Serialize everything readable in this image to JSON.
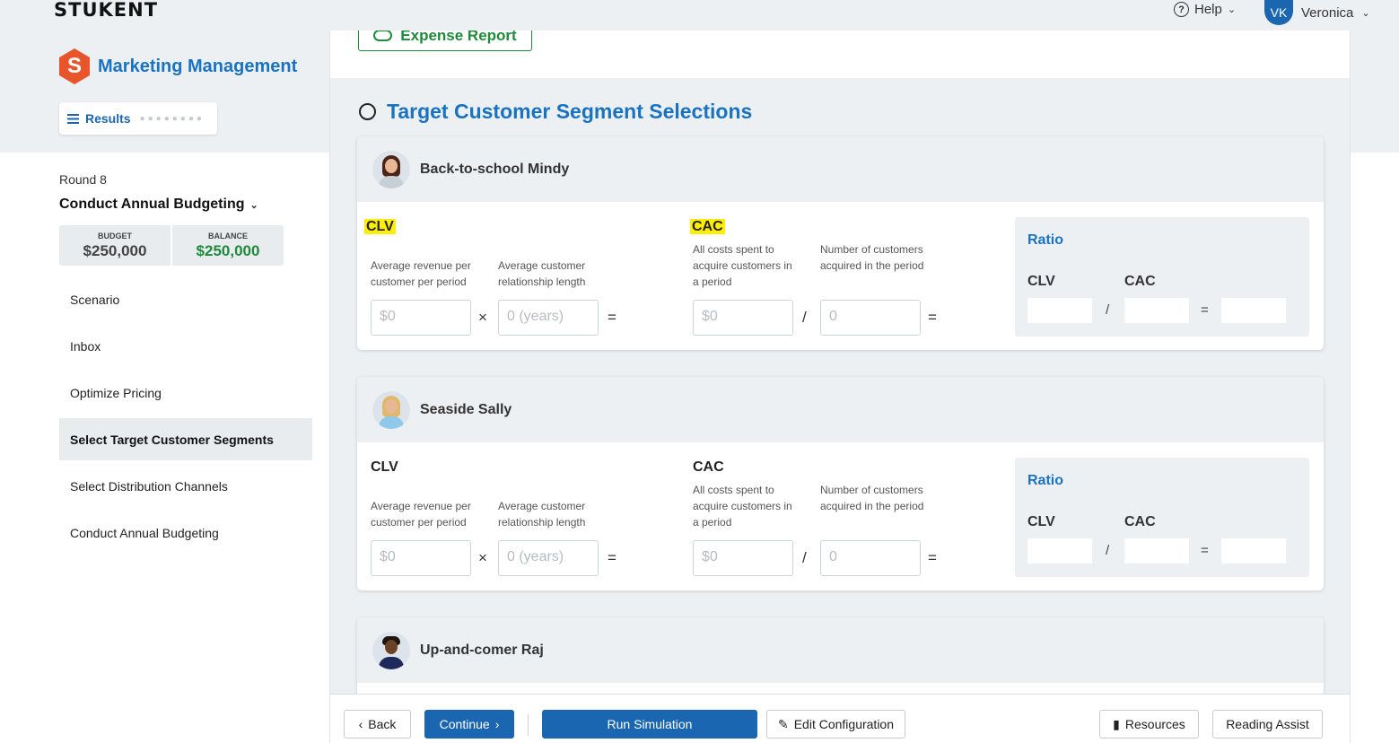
{
  "app": {
    "logo": "STUKENT",
    "product_name": "Marketing Management",
    "product_icon_letter": "S"
  },
  "header": {
    "help_label": "Help",
    "user_initials": "VK",
    "user_name": "Veronica"
  },
  "sidebar": {
    "results_label": "Results",
    "round_label": "Round 8",
    "phase_label": "Conduct Annual Budgeting",
    "budget": {
      "budget_header": "BUDGET",
      "budget_value": "$250,000",
      "balance_header": "BALANCE",
      "balance_value": "$250,000"
    },
    "nav": [
      {
        "label": "Scenario",
        "active": false
      },
      {
        "label": "Inbox",
        "active": false
      },
      {
        "label": "Optimize Pricing",
        "active": false
      },
      {
        "label": "Select Target Customer Segments",
        "active": true
      },
      {
        "label": "Select Distribution Channels",
        "active": false
      },
      {
        "label": "Conduct Annual Budgeting",
        "active": false
      }
    ]
  },
  "main": {
    "expense_report_label": "Expense Report",
    "section_title": "Target Customer Segment Selections",
    "labels": {
      "clv": "CLV",
      "cac": "CAC",
      "avg_revenue": "Average revenue per customer per period",
      "avg_length": "Average customer relationship length",
      "all_costs": "All costs spent to acquire customers in a period",
      "num_customers": "Number of customers acquired in the period",
      "ratio": "Ratio",
      "times": "×",
      "divide": "/",
      "equals": "="
    },
    "placeholders": {
      "revenue": "$0",
      "length": "0 (years)",
      "costs": "$0",
      "customers": "0"
    },
    "segments": [
      {
        "name": "Back-to-school Mindy"
      },
      {
        "name": "Seaside Sally"
      },
      {
        "name": "Up-and-comer Raj"
      }
    ]
  },
  "footer": {
    "back_label": "Back",
    "continue_label": "Continue",
    "run_label": "Run Simulation",
    "edit_label": "Edit Configuration",
    "resources_label": "Resources",
    "reading_label": "Reading Assist"
  },
  "colors": {
    "brand_blue": "#1a73c0",
    "button_blue": "#1a66b0",
    "balance_green": "#1e8a3a",
    "highlight": "#ffee00",
    "logo_orange": "#e8552b"
  }
}
